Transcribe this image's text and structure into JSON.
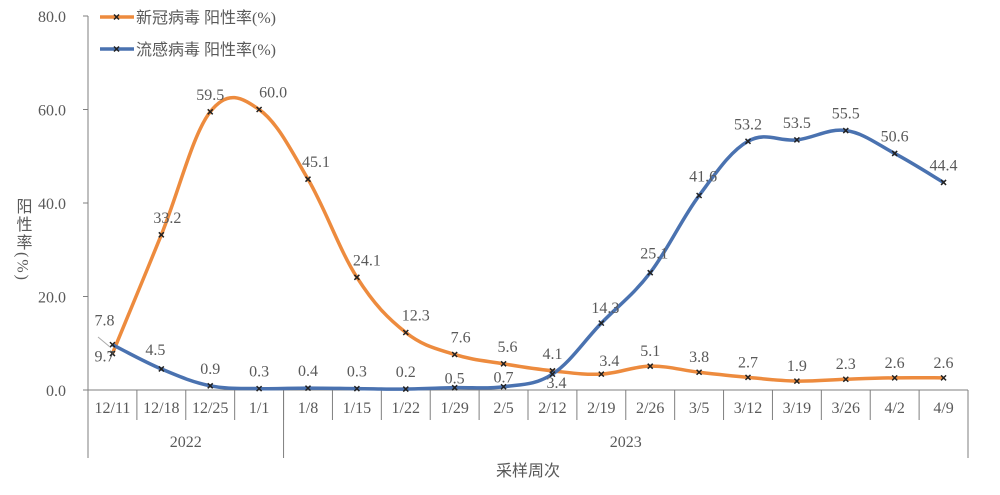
{
  "chart_data": {
    "type": "line",
    "title": "",
    "xlabel": "采样周次",
    "ylabel": "阳性率(%)",
    "ylim": [
      0,
      80
    ],
    "yticks": [
      "0.0",
      "20.0",
      "40.0",
      "60.0",
      "80.0"
    ],
    "grid": false,
    "legend_position": "top-left",
    "categories": [
      "12/11",
      "12/18",
      "12/25",
      "1/1",
      "1/8",
      "1/15",
      "1/22",
      "1/29",
      "2/5",
      "2/12",
      "2/19",
      "2/26",
      "3/5",
      "3/12",
      "3/19",
      "3/26",
      "4/2",
      "4/9"
    ],
    "year_groups": [
      {
        "label": "2022",
        "span": 4
      },
      {
        "label": "2023",
        "span": 14
      }
    ],
    "smooth": true,
    "series": [
      {
        "name": "新冠病毒 阳性率(%)",
        "color": "#ED8B3E",
        "values": [
          7.8,
          33.2,
          59.5,
          60.0,
          45.1,
          24.1,
          12.3,
          7.6,
          5.6,
          4.1,
          3.4,
          5.1,
          3.8,
          2.7,
          1.9,
          2.3,
          2.6,
          2.6
        ],
        "labels": [
          "7.8",
          "33.2",
          "59.5",
          "60.0",
          "45.1",
          "24.1",
          "12.3",
          "7.6",
          "5.6",
          "4.1",
          "3.4",
          "5.1",
          "3.8",
          "2.7",
          "1.9",
          "2.3",
          "2.6",
          "2.6"
        ]
      },
      {
        "name": "流感病毒 阳性率(%)",
        "color": "#4A72B0",
        "values": [
          9.7,
          4.5,
          0.9,
          0.3,
          0.4,
          0.3,
          0.2,
          0.5,
          0.7,
          3.4,
          14.3,
          25.1,
          41.6,
          53.2,
          53.5,
          55.5,
          50.6,
          44.4
        ],
        "labels": [
          "9.7",
          "4.5",
          "0.9",
          "0.3",
          "0.4",
          "0.3",
          "0.2",
          "0.5",
          "0.7",
          "3.4",
          "14.3",
          "25.1",
          "41.6",
          "53.2",
          "53.5",
          "55.5",
          "50.6",
          "44.4"
        ]
      }
    ]
  }
}
